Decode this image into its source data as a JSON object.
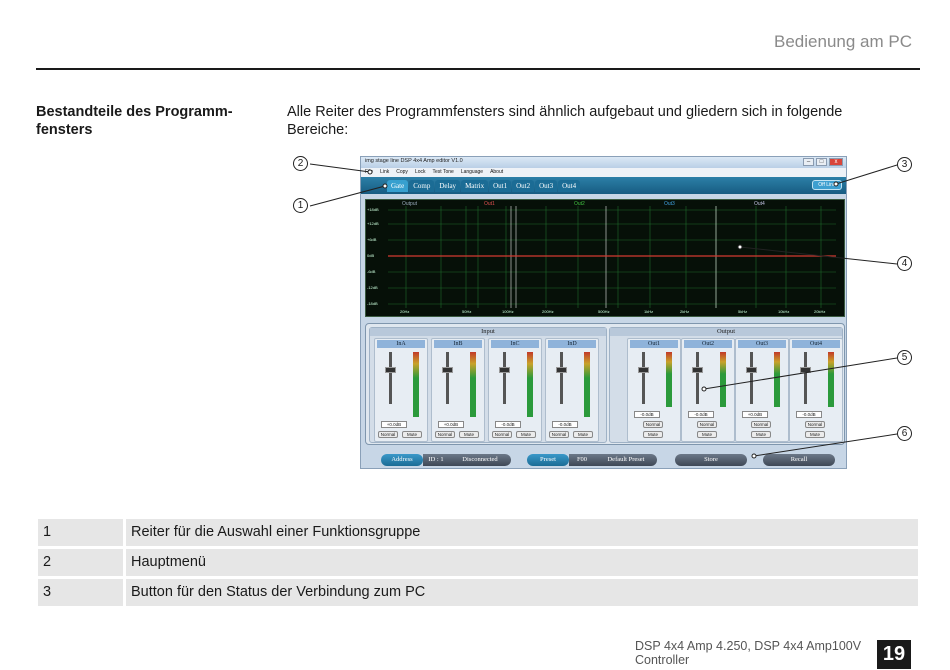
{
  "header": {
    "title": "Bedienung am PC"
  },
  "section": {
    "heading": "Bestandteile des Programm-fensters",
    "intro": "Alle Reiter des Programmfensters sind ähnlich aufgebaut und gliedern sich in folgende Bereiche:"
  },
  "screenshot": {
    "window_title": "img stage line DSP 4x4 Amp editor V1.0",
    "window_buttons": [
      "–",
      "□",
      "x"
    ],
    "menu": [
      "File",
      "Link",
      "Copy",
      "Lock",
      "Test Tone",
      "Language",
      "About"
    ],
    "tabs": [
      "Gate",
      "Comp",
      "Delay",
      "Matrix",
      "Out1",
      "Out2",
      "Out3",
      "Out4"
    ],
    "status_button": "Off Line",
    "graph": {
      "label": "Output",
      "legend": [
        "Out1",
        "Out2",
        "Out3",
        "Out4"
      ],
      "y_ticks": [
        "+18dB",
        "+12dB",
        "+6dB",
        "0dB",
        "-6dB",
        "-12dB",
        "-18dB"
      ],
      "x_ticks": [
        "20Hz",
        "50Hz",
        "100Hz",
        "200Hz",
        "500Hz",
        "1kHz",
        "2kHz",
        "5kHz",
        "10kHz",
        "20kHz"
      ]
    },
    "input_group": {
      "label": "Input",
      "channels": [
        {
          "name": "InA",
          "db": "+0.0dB",
          "normal": "Normal",
          "mute": "Mute"
        },
        {
          "name": "InB",
          "db": "+0.0dB",
          "normal": "Normal",
          "mute": "Mute"
        },
        {
          "name": "InC",
          "db": "-0.0dB",
          "normal": "Normal",
          "mute": "Mute"
        },
        {
          "name": "InD",
          "db": "-0.0dB",
          "normal": "Normal",
          "mute": "Mute"
        }
      ]
    },
    "output_group": {
      "label": "Output",
      "channels": [
        {
          "name": "Out1",
          "db": "-0.0dB",
          "normal": "Normal",
          "mute": "Mute"
        },
        {
          "name": "Out2",
          "db": "-0.0dB",
          "normal": "Normal",
          "mute": "Mute"
        },
        {
          "name": "Out3",
          "db": "+0.0dB",
          "normal": "Normal",
          "mute": "Mute"
        },
        {
          "name": "Out4",
          "db": "-0.0dB",
          "normal": "Normal",
          "mute": "Mute"
        }
      ]
    },
    "bottom": {
      "address_label": "Address",
      "id_value": "ID : 1",
      "connection": "Disconnected",
      "preset_label": "Preset",
      "preset_number": "F00",
      "preset_name": "Default Preset",
      "store": "Store",
      "recall": "Recall"
    }
  },
  "callouts": [
    "1",
    "2",
    "3",
    "4",
    "5",
    "6"
  ],
  "legend_rows": [
    {
      "num": "1",
      "text": "Reiter für die Auswahl einer Funktionsgruppe"
    },
    {
      "num": "2",
      "text": "Hauptmenü"
    },
    {
      "num": "3",
      "text": "Button für den Status der Verbindung zum PC"
    }
  ],
  "footer": {
    "product": "DSP 4x4 Amp 4.250, DSP 4x4 Amp100V Controller",
    "page": "19"
  }
}
